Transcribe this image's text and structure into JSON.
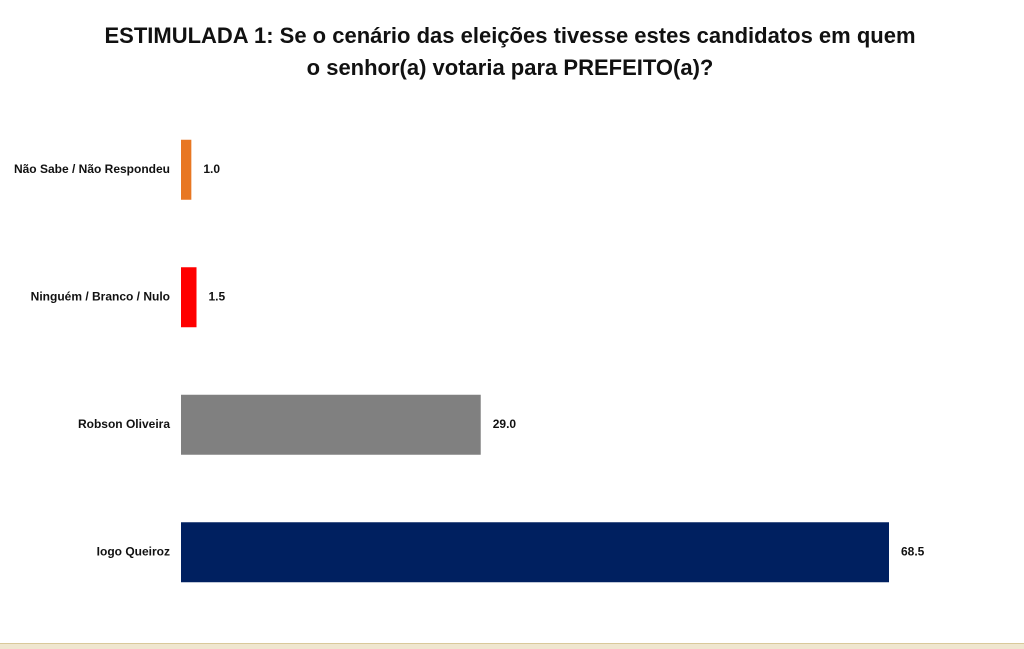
{
  "chart_data": {
    "type": "bar",
    "orientation": "horizontal",
    "title": "ESTIMULADA 1: Se o cenário das eleições tivesse estes candidatos em quem o senhor(a) votaria para PREFEITO(a)?",
    "categories": [
      "Não Sabe / Não Respondeu",
      "Ninguém / Branco / Nulo",
      "Robson Oliveira",
      "Iogo Queiroz"
    ],
    "values": [
      1,
      1.5,
      29,
      68.5
    ],
    "value_labels": [
      "1.0",
      "1.5",
      "29.0",
      "68.5"
    ],
    "colors": [
      "#e87722",
      "#ff0000",
      "#808080",
      "#002060"
    ]
  }
}
